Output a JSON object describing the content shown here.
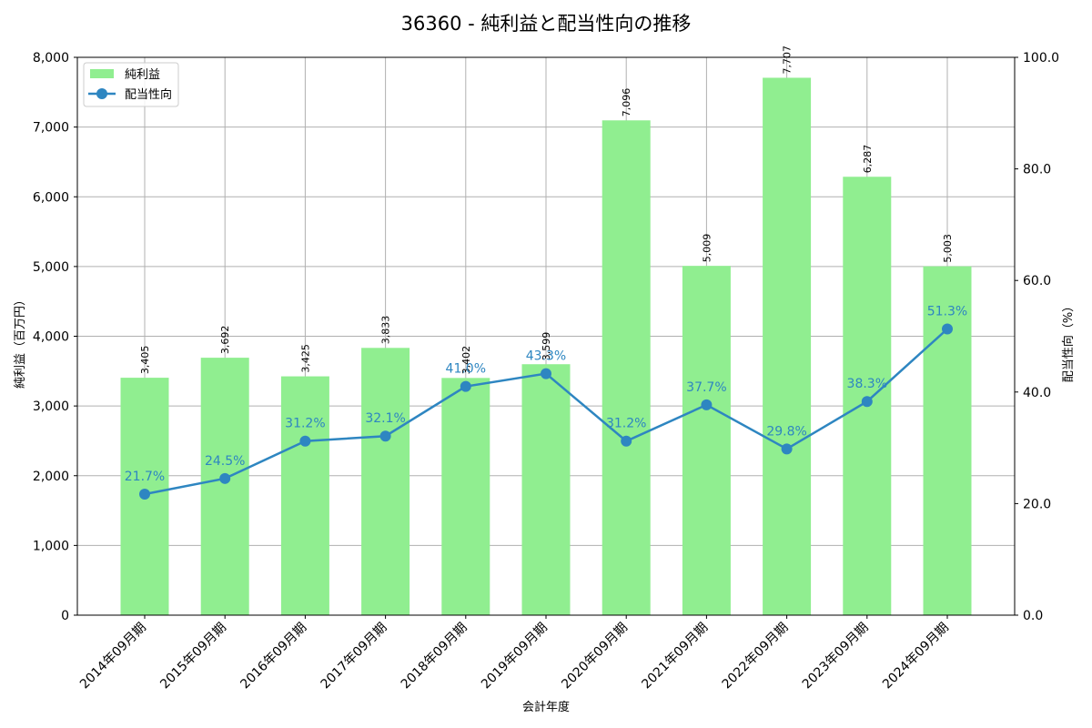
{
  "title": "36360 - 純利益と配当性向の推移",
  "colors": {
    "bar": "#90ee90",
    "line": "#2e86c1",
    "grid": "#b0b0b0",
    "axis": "#000000"
  },
  "legend": {
    "items": [
      {
        "label": "純利益",
        "type": "bar"
      },
      {
        "label": "配当性向",
        "type": "line"
      }
    ]
  },
  "chart_data": {
    "type": "bar+line",
    "title": "36360 - 純利益と配当性向の推移",
    "xlabel": "会計年度",
    "ylabel_left": "純利益（百万円）",
    "ylabel_right": "配当性向（%）",
    "categories": [
      "2014年09月期",
      "2015年09月期",
      "2016年09月期",
      "2017年09月期",
      "2018年09月期",
      "2019年09月期",
      "2020年09月期",
      "2021年09月期",
      "2022年09月期",
      "2023年09月期",
      "2024年09月期"
    ],
    "series": [
      {
        "name": "純利益",
        "type": "bar",
        "axis": "left",
        "values": [
          3405,
          3692,
          3425,
          3833,
          3402,
          3599,
          7096,
          5009,
          7707,
          6287,
          5003
        ],
        "labels": [
          "3,405",
          "3,692",
          "3,425",
          "3,833",
          "3,402",
          "3,599",
          "7,096",
          "5,009",
          "7,707",
          "6,287",
          "5,003"
        ]
      },
      {
        "name": "配当性向",
        "type": "line",
        "axis": "right",
        "values": [
          21.7,
          24.5,
          31.2,
          32.1,
          41.0,
          43.3,
          31.2,
          37.7,
          29.8,
          38.3,
          51.3
        ],
        "labels": [
          "21.7%",
          "24.5%",
          "31.2%",
          "32.1%",
          "41.0%",
          "43.3%",
          "31.2%",
          "37.7%",
          "29.8%",
          "38.3%",
          "51.3%"
        ]
      }
    ],
    "ylim_left": [
      0,
      8000
    ],
    "ylim_right": [
      0,
      100
    ],
    "yticks_left": [
      "0",
      "1,000",
      "2,000",
      "3,000",
      "4,000",
      "5,000",
      "6,000",
      "7,000",
      "8,000"
    ],
    "yticks_right": [
      "0.0",
      "20.0",
      "40.0",
      "60.0",
      "80.0",
      "100.0"
    ],
    "grid": true,
    "legend_position": "upper left"
  }
}
